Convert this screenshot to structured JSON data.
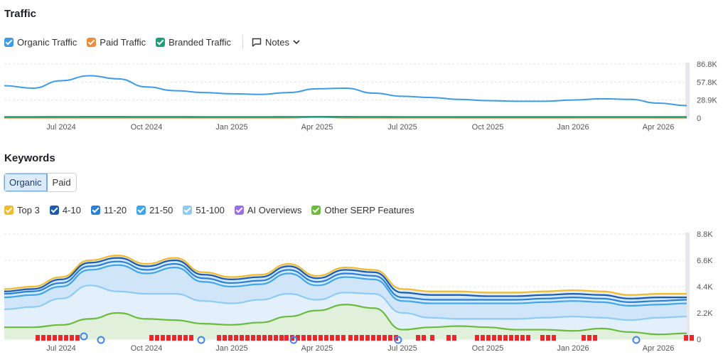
{
  "traffic": {
    "title": "Traffic",
    "legend": [
      {
        "label": "Organic Traffic",
        "color": "#3d9be9"
      },
      {
        "label": "Paid Traffic",
        "color": "#f08a3a"
      },
      {
        "label": "Branded Traffic",
        "color": "#17a07a"
      }
    ],
    "notes_label": "Notes"
  },
  "keywords": {
    "title": "Keywords",
    "toggle": [
      "Organic",
      "Paid"
    ],
    "legend": [
      {
        "label": "Top 3",
        "color": "#f2b92a"
      },
      {
        "label": "4-10",
        "color": "#1a5bb0"
      },
      {
        "label": "11-20",
        "color": "#2a7fd6"
      },
      {
        "label": "21-50",
        "color": "#3fa6ec"
      },
      {
        "label": "51-100",
        "color": "#8ecaf6"
      },
      {
        "label": "AI Overviews",
        "color": "#9a6ee6"
      },
      {
        "label": "Other SERP Features",
        "color": "#6bbb3c"
      }
    ]
  },
  "chart_data": [
    {
      "type": "line",
      "title": "Traffic",
      "x_ticks": [
        "Jul 2024",
        "Oct 2024",
        "Jan 2025",
        "Apr 2025",
        "Jul 2025",
        "Oct 2025",
        "Jan 2026",
        "Apr 2026"
      ],
      "y_ticks": [
        "86.8K",
        "57.8K",
        "28.9K",
        "0"
      ],
      "ylim": [
        0,
        86800
      ],
      "x": [
        "May 2024",
        "Jun 2024",
        "Jul 2024",
        "Aug 2024",
        "Sep 2024",
        "Oct 2024",
        "Nov 2024",
        "Dec 2024",
        "Jan 2025",
        "Feb 2025",
        "Mar 2025",
        "Apr 2025",
        "May 2025",
        "Jun 2025",
        "Jul 2025",
        "Aug 2025",
        "Sep 2025",
        "Oct 2025",
        "Nov 2025",
        "Dec 2025",
        "Jan 2026",
        "Feb 2026",
        "Mar 2026",
        "Apr 2026",
        "May 2026"
      ],
      "series": [
        {
          "name": "Organic Traffic",
          "values": [
            52000,
            48000,
            60000,
            68000,
            63000,
            50000,
            44000,
            41000,
            39000,
            38000,
            41000,
            47000,
            48000,
            40000,
            35000,
            33000,
            30000,
            28000,
            27000,
            27000,
            29000,
            31000,
            30000,
            24000,
            20000
          ]
        },
        {
          "name": "Paid Traffic",
          "values": [
            600,
            600,
            600,
            600,
            600,
            600,
            600,
            600,
            600,
            600,
            600,
            2000,
            600,
            600,
            600,
            600,
            600,
            600,
            600,
            600,
            600,
            600,
            600,
            600,
            600
          ]
        },
        {
          "name": "Branded Traffic",
          "values": [
            1800,
            1800,
            1900,
            2000,
            2000,
            1900,
            1900,
            1800,
            1800,
            1800,
            1900,
            2000,
            2000,
            1900,
            1800,
            1800,
            1700,
            1700,
            1700,
            1700,
            1700,
            1800,
            1800,
            1700,
            1700
          ]
        }
      ]
    },
    {
      "type": "area",
      "title": "Keywords",
      "x_ticks": [
        "Jul 2024",
        "Oct 2024",
        "Jan 2025",
        "Apr 2025",
        "Jul 2025",
        "Oct 2025",
        "Jan 2026",
        "Apr 2026"
      ],
      "y_ticks": [
        "8.8K",
        "6.6K",
        "4.4K",
        "2.2K",
        "0"
      ],
      "ylim": [
        0,
        8800
      ],
      "x": [
        "May 2024",
        "Jun 2024",
        "Jul 2024",
        "Aug 2024",
        "Sep 2024",
        "Oct 2024",
        "Nov 2024",
        "Dec 2024",
        "Jan 2025",
        "Feb 2025",
        "Mar 2025",
        "Apr 2025",
        "May 2025",
        "Jun 2025",
        "Jul 2025",
        "Aug 2025",
        "Sep 2025",
        "Oct 2025",
        "Nov 2025",
        "Dec 2025",
        "Jan 2026",
        "Feb 2026",
        "Mar 2026",
        "Apr 2026",
        "May 2026"
      ],
      "series": [
        {
          "name": "Top 3",
          "values": [
            4200,
            4400,
            5200,
            6600,
            7000,
            6300,
            6800,
            5600,
            5200,
            5400,
            6300,
            5300,
            6000,
            5800,
            4200,
            4000,
            4000,
            3900,
            3900,
            4000,
            4100,
            4000,
            3700,
            3800,
            3800
          ]
        },
        {
          "name": "4-10",
          "values": [
            4000,
            4200,
            5000,
            6400,
            6800,
            6100,
            6600,
            5400,
            5000,
            5200,
            6100,
            5100,
            5800,
            5600,
            3900,
            3700,
            3700,
            3600,
            3600,
            3700,
            3800,
            3700,
            3400,
            3500,
            3500
          ]
        },
        {
          "name": "11-20",
          "values": [
            3800,
            4000,
            4700,
            6100,
            6500,
            5800,
            6300,
            5100,
            4700,
            4900,
            5800,
            4800,
            5500,
            5300,
            3500,
            3300,
            3300,
            3300,
            3300,
            3400,
            3500,
            3400,
            3100,
            3200,
            3300
          ]
        },
        {
          "name": "21-50",
          "values": [
            3500,
            3700,
            4400,
            5800,
            6200,
            5500,
            6000,
            4800,
            4400,
            4600,
            5500,
            4500,
            5200,
            5000,
            3200,
            3000,
            3000,
            3000,
            3000,
            3100,
            3200,
            3100,
            2800,
            2900,
            3000
          ]
        },
        {
          "name": "51-100",
          "values": [
            2500,
            2700,
            3400,
            4500,
            4000,
            3800,
            3800,
            3200,
            3000,
            3300,
            3800,
            3300,
            3900,
            3800,
            2200,
            1800,
            1700,
            1700,
            1700,
            1800,
            1900,
            1800,
            1600,
            1800,
            1900
          ]
        },
        {
          "name": "Other SERP Features",
          "values": [
            1000,
            1000,
            1200,
            1700,
            2200,
            1700,
            1600,
            1300,
            1200,
            1400,
            1900,
            2400,
            2900,
            2600,
            800,
            1000,
            1100,
            1000,
            800,
            800,
            700,
            900,
            600,
            400,
            500
          ]
        }
      ]
    }
  ]
}
